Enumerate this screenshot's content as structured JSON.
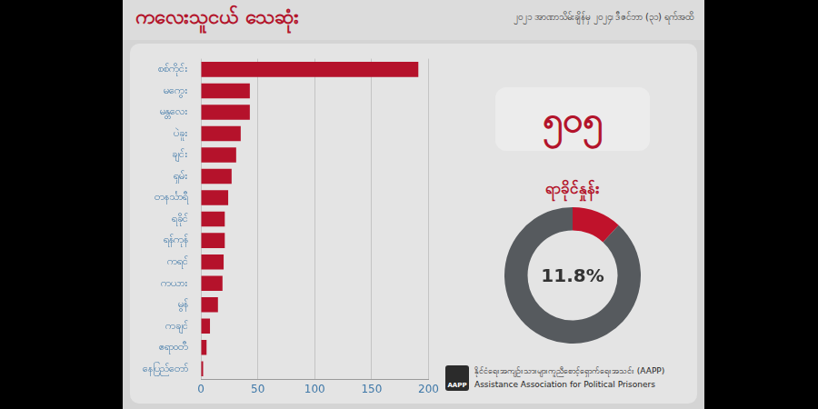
{
  "chart_data": [
    {
      "type": "bar",
      "title": "ကလေးသူငယ် သေဆုံး",
      "subtitle": "၂၀၂၁ အာဏာသိမ်းချိန်မှ ၂၀၂၄၊ ဒီဇင်ဘာ (၃၁) ရက်အထိ",
      "orientation": "horizontal",
      "categories": [
        "စစ်ကိုင်း",
        "မကွေး",
        "မန္တလေး",
        "ပဲခူး",
        "ချင်း",
        "ရှမ်း",
        "တနင်္သာရီ",
        "ရခိုင်",
        "ရန်ကုန်",
        "ကရင်",
        "ကယား",
        "မွန်",
        "ကချင်",
        "ဧရာဝတီ",
        "နေပြည်တော်"
      ],
      "values": [
        191,
        43,
        43,
        35,
        31,
        27,
        24,
        21,
        21,
        20,
        19,
        15,
        8,
        5,
        2
      ],
      "color": "#b5122b",
      "xlim": [
        0,
        200
      ],
      "xticks": [
        0,
        50,
        100,
        150,
        200
      ],
      "grid": true
    },
    {
      "type": "doughnut",
      "title": "ရာခိုင်နှုန်း",
      "values": [
        11.8,
        88.2
      ],
      "value_labels": [
        "11.8%",
        null
      ],
      "colors": [
        "#c0122b",
        "#565a5e"
      ]
    }
  ],
  "total": "၅၀၅",
  "source": {
    "name": "နိုင်ငံရေးအကျဉ်းသားများကူညီစောင့်ရှောက်ရေးအသင်း (AAPP)",
    "english": "Assistance Association for Political Prisoners",
    "logo": "AAPP"
  }
}
